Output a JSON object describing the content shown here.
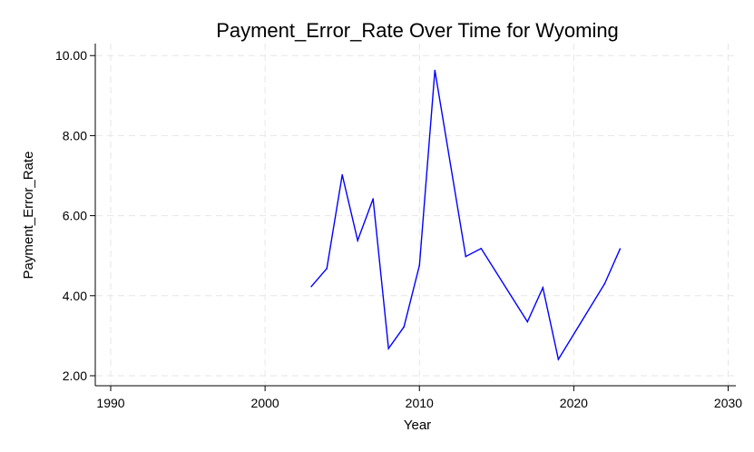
{
  "chart_data": {
    "type": "line",
    "title": "Payment_Error_Rate Over Time for Wyoming",
    "xlabel": "Year",
    "ylabel": "Payment_Error_Rate",
    "xlim": [
      1989,
      2030.5
    ],
    "ylim": [
      1.75,
      10.3
    ],
    "xticks": [
      1990,
      2000,
      2010,
      2020,
      2030
    ],
    "yticks": [
      "2.00",
      "4.00",
      "6.00",
      "8.00",
      "10.00"
    ],
    "grid": true,
    "color": "#0000ff",
    "series": [
      {
        "x": [
          2003,
          2004,
          2005,
          2006,
          2007,
          2008,
          2009,
          2010,
          2011,
          2013,
          2014,
          2017,
          2018,
          2019,
          2022,
          2023
        ],
        "values": [
          4.23,
          4.68,
          7.02,
          5.38,
          6.42,
          2.68,
          3.22,
          4.76,
          9.63,
          4.98,
          5.18,
          3.35,
          4.2,
          2.41,
          4.3,
          5.17
        ]
      }
    ]
  }
}
